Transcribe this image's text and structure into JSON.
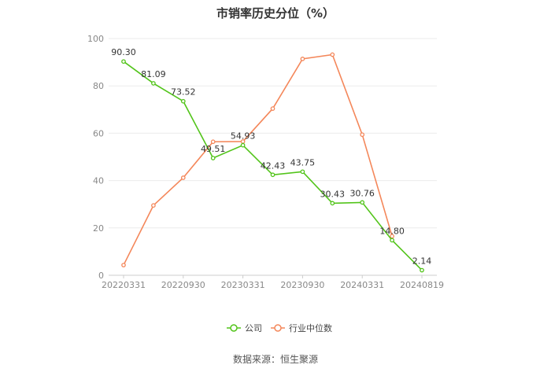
{
  "chart_data": {
    "type": "line",
    "title": "市销率历史分位（%）",
    "xlabel": "",
    "ylabel": "",
    "ylim": [
      0,
      100
    ],
    "yticks": [
      0,
      20,
      40,
      60,
      80,
      100
    ],
    "x_tick_labels": [
      "20220331",
      "20220930",
      "20230331",
      "20230930",
      "20240331",
      "20240819"
    ],
    "grid": "horizontal",
    "legend_position": "bottom",
    "series": [
      {
        "name": "公司",
        "color": "#52c41a",
        "values": [
          90.3,
          81.09,
          73.52,
          49.51,
          54.93,
          42.43,
          43.75,
          30.43,
          30.76,
          14.8,
          2.14
        ],
        "labels": [
          "90.30",
          "81.09",
          "73.52",
          "49.51",
          "54.93",
          "42.43",
          "43.75",
          "30.43",
          "30.76",
          "14.80",
          "2.14"
        ]
      },
      {
        "name": "行业中位数",
        "color": "#f4875a",
        "values": [
          4.3,
          29.5,
          41.2,
          56.4,
          56.5,
          70.4,
          91.4,
          93.2,
          59.4,
          16.5,
          null
        ]
      }
    ]
  },
  "source_text": "数据来源：恒生聚源"
}
